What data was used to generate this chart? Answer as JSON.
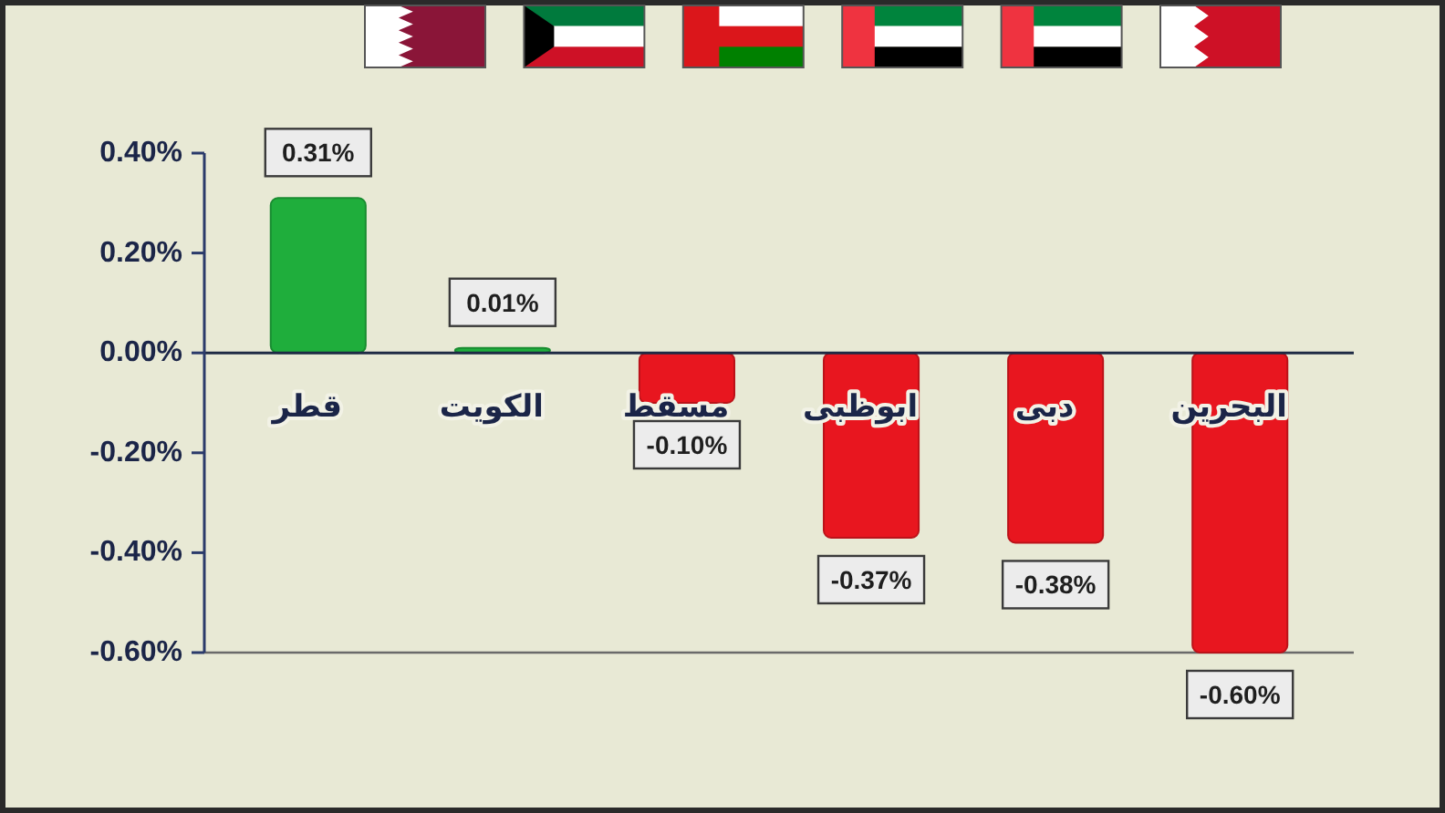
{
  "chart_data": {
    "type": "bar",
    "categories": [
      "قطر",
      "الكويت",
      "مسقط",
      "ابوظبى",
      "دبى",
      "البحرين"
    ],
    "values": [
      0.31,
      0.01,
      -0.1,
      -0.37,
      -0.38,
      -0.6
    ],
    "colors": [
      "#1fae3c",
      "#1fae3c",
      "#e8161f",
      "#e8161f",
      "#e8161f",
      "#e8161f"
    ],
    "value_labels": [
      "0.31%",
      "0.01%",
      "-0.10%",
      "-0.37%",
      "-0.38%",
      "-0.60%"
    ],
    "ylim": [
      -0.6,
      0.4
    ],
    "yticks": [
      {
        "value": 0.4,
        "label": "0.40%"
      },
      {
        "value": 0.2,
        "label": "0.20%"
      },
      {
        "value": 0,
        "label": "0.00%"
      },
      {
        "value": -0.2,
        "label": "-0.20%"
      },
      {
        "value": -0.4,
        "label": "-0.40%"
      },
      {
        "value": -0.6,
        "label": "-0.60%"
      }
    ]
  }
}
